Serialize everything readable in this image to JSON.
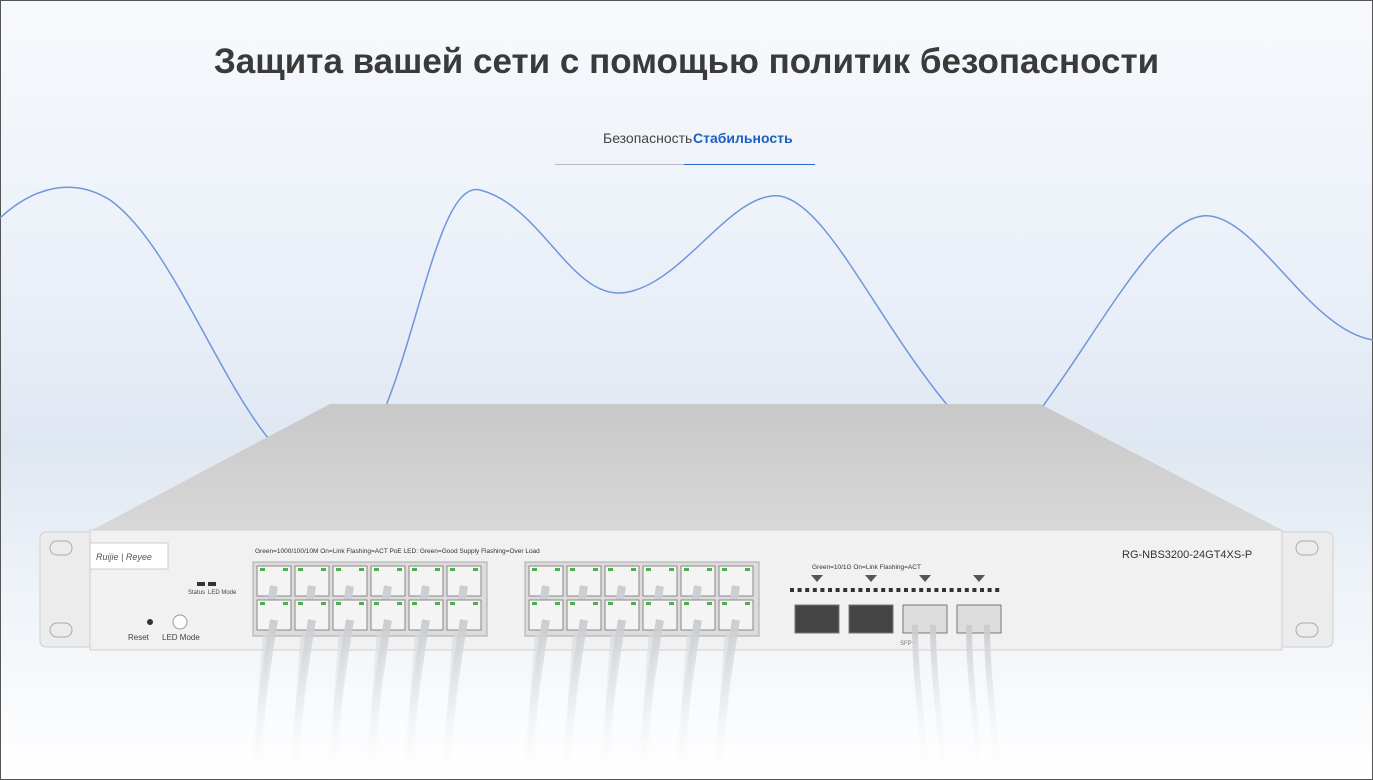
{
  "header": {
    "title": "Защита вашей сети с помощью политик безопасности"
  },
  "tabs": [
    {
      "label": "Безопасность",
      "active": false
    },
    {
      "label": "Стабильность",
      "active": true
    }
  ],
  "device": {
    "model": "RG-NBS3200-24GT4XS-P",
    "legend_rj45": "Green=1000/100/10M   On=Link   Flashing=ACT   PoE LED: Green=Good Supply   Flashing=Over Load",
    "legend_sfp": "Green=10/1G   On=Link   Flashing=ACT",
    "status": "Status",
    "led_mode_led": "LED Mode",
    "reset": "Reset",
    "led_mode_button": "LED Mode",
    "sfp": "SFP+"
  }
}
